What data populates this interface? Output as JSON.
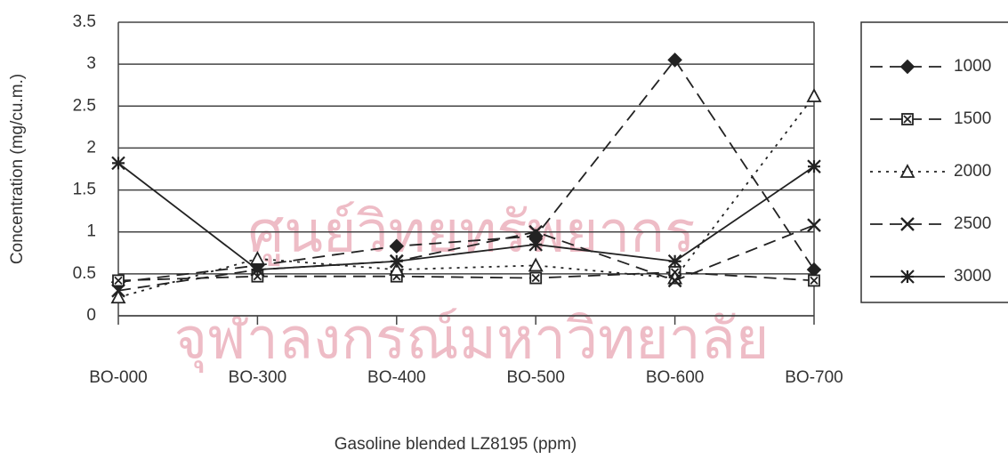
{
  "chart_data": {
    "type": "line",
    "watermark": [
      "ศูนย์วิทยทรัพยากร",
      "จุฬาลงกรณ์มหาวิทยาลัย"
    ],
    "x_label": "Gasoline blended LZ8195 (ppm)",
    "y_label": "Concentration (mg/cu.m.)",
    "categories": [
      "BO-000",
      "BO-300",
      "BO-400",
      "BO-500",
      "BO-600",
      "BO-700"
    ],
    "ylim": [
      0,
      3.5
    ],
    "yticks": [
      0,
      0.5,
      1,
      1.5,
      2,
      2.5,
      3,
      3.5
    ],
    "grid": true,
    "legend": "right",
    "series": [
      {
        "name": "1000",
        "color": "#222",
        "line_style": "dashed",
        "marker": "diamond",
        "values": [
          0.4,
          0.6,
          0.83,
          0.95,
          3.05,
          0.55
        ]
      },
      {
        "name": "1500",
        "color": "#222",
        "line_style": "dashed",
        "marker": "square",
        "values": [
          0.42,
          0.47,
          0.47,
          0.45,
          0.52,
          0.42
        ]
      },
      {
        "name": "2000",
        "color": "#222",
        "line_style": "dotted",
        "marker": "triangle",
        "values": [
          0.22,
          0.68,
          0.55,
          0.6,
          0.45,
          2.62
        ]
      },
      {
        "name": "2500",
        "color": "#222",
        "line_style": "dashed",
        "marker": "x",
        "values": [
          0.3,
          0.55,
          0.65,
          1.0,
          0.42,
          1.08
        ]
      },
      {
        "name": "3000",
        "color": "#222",
        "line_style": "solid",
        "marker": "asterisk",
        "values": [
          1.82,
          0.55,
          0.65,
          0.85,
          0.65,
          1.78
        ]
      }
    ]
  }
}
